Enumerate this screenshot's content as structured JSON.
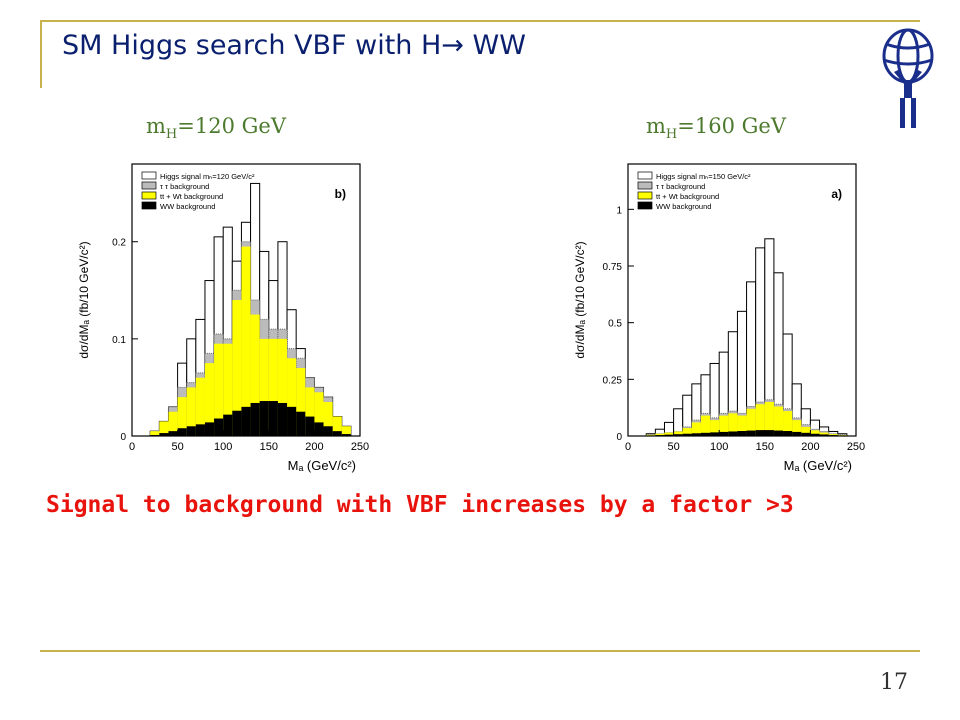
{
  "slide": {
    "title": "SM Higgs search VBF with H→ WW",
    "conclusion": "Signal to background with VBF increases by a factor >3",
    "page_number": "17",
    "colors": {
      "title": "#0a1f6e",
      "frame": "#c7b34b",
      "mass_label": "#4d7a2e",
      "conclusion": "#e8130c"
    }
  },
  "panels": {
    "left": {
      "mass_prefix": "m",
      "mass_sub": "H",
      "mass_value": "=120 GeV"
    },
    "right": {
      "mass_prefix": "m",
      "mass_sub": "H",
      "mass_value": "=160 GeV"
    }
  },
  "chart_data": [
    {
      "type": "area",
      "panel_tag": "b)",
      "ylabel": "dσ/dMₐ (fb/10 GeV/c²)",
      "xlabel": "Mₐ (GeV/c²)",
      "xlim": [
        0,
        250
      ],
      "ylim": [
        0,
        0.28
      ],
      "x_ticks": [
        "0",
        "50",
        "100",
        "150",
        "200",
        "250"
      ],
      "x_tick_values": [
        0,
        50,
        100,
        150,
        200,
        250
      ],
      "y_ticks": [
        "0",
        "0.1",
        "0.2"
      ],
      "y_tick_values": [
        0,
        0.1,
        0.2
      ],
      "legend": [
        {
          "label": "Higgs signal mₕ=120 GeV/c²",
          "color": "#ffffff"
        },
        {
          "label": "τ τ background",
          "color": "#bbbbbb"
        },
        {
          "label": "tt + Wt background",
          "color": "#ffff00"
        },
        {
          "label": "WW background",
          "color": "#000000"
        }
      ],
      "bin_edges": [
        20,
        30,
        40,
        50,
        60,
        70,
        80,
        90,
        100,
        110,
        120,
        130,
        140,
        150,
        160,
        170,
        180,
        190,
        200,
        210,
        220,
        230,
        240
      ],
      "series": [
        {
          "name": "Higgs signal",
          "values": [
            0.005,
            0.015,
            0.03,
            0.075,
            0.1,
            0.12,
            0.16,
            0.205,
            0.215,
            0.18,
            0.22,
            0.26,
            0.19,
            0.16,
            0.2,
            0.13,
            0.09,
            0.06,
            0.05,
            0.04,
            0.02,
            0.01
          ]
        },
        {
          "name": "τ τ background",
          "values": [
            0.005,
            0.015,
            0.03,
            0.05,
            0.055,
            0.065,
            0.085,
            0.105,
            0.1,
            0.15,
            0.2,
            0.14,
            0.12,
            0.11,
            0.11,
            0.09,
            0.08,
            0.06,
            0.05,
            0.04,
            0.02,
            0.01
          ]
        },
        {
          "name": "tt + Wt background",
          "values": [
            0.005,
            0.015,
            0.025,
            0.04,
            0.05,
            0.06,
            0.075,
            0.095,
            0.095,
            0.14,
            0.195,
            0.125,
            0.1,
            0.1,
            0.1,
            0.08,
            0.07,
            0.05,
            0.045,
            0.035,
            0.02,
            0.01
          ]
        },
        {
          "name": "WW background",
          "values": [
            0.001,
            0.003,
            0.005,
            0.008,
            0.01,
            0.012,
            0.014,
            0.018,
            0.022,
            0.026,
            0.03,
            0.034,
            0.036,
            0.036,
            0.034,
            0.03,
            0.025,
            0.02,
            0.014,
            0.01,
            0.005,
            0.002
          ]
        }
      ]
    },
    {
      "type": "area",
      "panel_tag": "a)",
      "ylabel": "dσ/dMₐ (fb/10 GeV/c²)",
      "xlabel": "Mₐ (GeV/c²)",
      "xlim": [
        0,
        250
      ],
      "ylim": [
        0,
        1.2
      ],
      "x_ticks": [
        "0",
        "50",
        "100",
        "150",
        "200",
        "250"
      ],
      "x_tick_values": [
        0,
        50,
        100,
        150,
        200,
        250
      ],
      "y_ticks": [
        "0",
        "0.25",
        "0.5",
        "0.75",
        "1"
      ],
      "y_tick_values": [
        0,
        0.25,
        0.5,
        0.75,
        1.0
      ],
      "legend": [
        {
          "label": "Higgs signal mₕ=150 GeV/c²",
          "color": "#ffffff"
        },
        {
          "label": "τ τ background",
          "color": "#bbbbbb"
        },
        {
          "label": "tt + Wt background",
          "color": "#ffff00"
        },
        {
          "label": "WW background",
          "color": "#000000"
        }
      ],
      "bin_edges": [
        20,
        30,
        40,
        50,
        60,
        70,
        80,
        90,
        100,
        110,
        120,
        130,
        140,
        150,
        160,
        170,
        180,
        190,
        200,
        210,
        220,
        230,
        240
      ],
      "series": [
        {
          "name": "Higgs signal",
          "values": [
            0.01,
            0.03,
            0.06,
            0.12,
            0.18,
            0.23,
            0.27,
            0.32,
            0.37,
            0.46,
            0.55,
            0.68,
            0.83,
            0.87,
            0.72,
            0.45,
            0.23,
            0.12,
            0.07,
            0.04,
            0.02,
            0.01
          ]
        },
        {
          "name": "τ τ background",
          "values": [
            0.005,
            0.01,
            0.015,
            0.02,
            0.04,
            0.07,
            0.1,
            0.08,
            0.1,
            0.11,
            0.1,
            0.13,
            0.15,
            0.16,
            0.14,
            0.12,
            0.08,
            0.05,
            0.03,
            0.02,
            0.01,
            0.005
          ]
        },
        {
          "name": "tt + Wt background",
          "values": [
            0.005,
            0.01,
            0.015,
            0.02,
            0.035,
            0.06,
            0.09,
            0.07,
            0.09,
            0.1,
            0.09,
            0.12,
            0.14,
            0.15,
            0.13,
            0.11,
            0.07,
            0.04,
            0.025,
            0.015,
            0.008,
            0.004
          ]
        },
        {
          "name": "WW background",
          "values": [
            0.002,
            0.004,
            0.006,
            0.008,
            0.01,
            0.012,
            0.014,
            0.016,
            0.018,
            0.02,
            0.022,
            0.024,
            0.026,
            0.026,
            0.024,
            0.022,
            0.018,
            0.014,
            0.01,
            0.007,
            0.004,
            0.002
          ]
        }
      ]
    }
  ]
}
